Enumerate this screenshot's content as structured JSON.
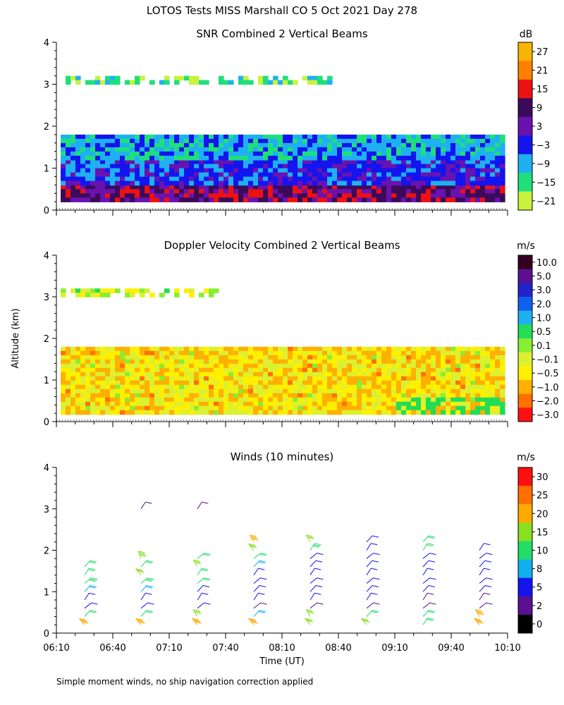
{
  "title": "LOTOS Tests MISS Marshall CO   5 Oct 2021 Day 278",
  "ylabel": "Altitude (km)",
  "xlabel": "Time (UT)",
  "footnote": "Simple moment winds, no ship navigation correction applied",
  "x_ticks": [
    "06:10",
    "06:40",
    "07:10",
    "07:40",
    "08:10",
    "08:40",
    "09:10",
    "09:40",
    "10:10"
  ],
  "y_ticks": [
    "0",
    "1",
    "2",
    "3",
    "4"
  ],
  "chart_data": [
    {
      "type": "heatmap",
      "title": "SNR Combined 2 Vertical Beams",
      "unit": "dB",
      "xlim": [
        "06:10",
        "10:10"
      ],
      "ylim": [
        0,
        4
      ],
      "colorbar": {
        "labels": [
          "27",
          "21",
          "15",
          "9",
          "3",
          "−3",
          "−9",
          "−15",
          "−21"
        ],
        "colors": [
          "#f7b500",
          "#ff7f00",
          "#ee1111",
          "#3c0a5a",
          "#6a12b0",
          "#1414ee",
          "#1fb0f2",
          "#1ee07a",
          "#c8f23c"
        ]
      },
      "layers": [
        {
          "from_km": 0.25,
          "to_km": 0.6,
          "level_dB": 9
        },
        {
          "from_km": 0.6,
          "to_km": 1.2,
          "level_dB": -3
        },
        {
          "from_km": 1.2,
          "to_km": 1.8,
          "level_dB": -9
        },
        {
          "from_km": 3.0,
          "to_km": 3.2,
          "level_dB": -15
        }
      ]
    },
    {
      "type": "heatmap",
      "title": "Doppler Velocity Combined 2 Vertical Beams",
      "unit": "m/s",
      "xlim": [
        "06:10",
        "10:10"
      ],
      "ylim": [
        0,
        4
      ],
      "colorbar": {
        "labels": [
          "10.0",
          "5.0",
          "3.0",
          "2.0",
          "1.0",
          "0.5",
          "0.1",
          "−0.1",
          "−0.5",
          "−1.0",
          "−2.0",
          "−3.0"
        ],
        "colors": [
          "#33001f",
          "#5a1090",
          "#2222cc",
          "#1060f0",
          "#20b0f0",
          "#22dd55",
          "#88ee33",
          "#ddf030",
          "#fff000",
          "#ffb000",
          "#ff7000",
          "#ff1010"
        ]
      },
      "layers": [
        {
          "from_km": 0.25,
          "to_km": 1.8,
          "level_ms": -0.5
        },
        {
          "from_km": 3.0,
          "to_km": 3.2,
          "level_ms": -0.1
        }
      ]
    },
    {
      "type": "scatter",
      "title": "Winds (10 minutes)",
      "unit": "m/s",
      "xlim": [
        "06:10",
        "10:10"
      ],
      "ylim": [
        0,
        4
      ],
      "colorbar": {
        "labels": [
          "30",
          "25",
          "20",
          "15",
          "10",
          "8",
          "5",
          "2",
          "0"
        ],
        "colors": [
          "#ff1010",
          "#ff7000",
          "#ffaa00",
          "#88e020",
          "#22dd66",
          "#10b0ee",
          "#1414ee",
          "#5a1090",
          "#000000"
        ]
      },
      "profiles": [
        {
          "time": "06:25",
          "heights_km": [
            0.2,
            0.4,
            0.6,
            0.8,
            1.0,
            1.2,
            1.4,
            1.6
          ],
          "speed_ms": [
            22,
            12,
            5,
            5,
            8,
            13,
            11,
            10
          ]
        },
        {
          "time": "06:55",
          "heights_km": [
            0.2,
            0.4,
            0.6,
            0.8,
            1.0,
            1.2,
            1.4,
            1.6,
            1.8,
            3.0
          ],
          "speed_ms": [
            22,
            10,
            5,
            5,
            8,
            13,
            16,
            12,
            18,
            3
          ]
        },
        {
          "time": "07:25",
          "heights_km": [
            0.2,
            0.4,
            0.6,
            0.8,
            1.0,
            1.2,
            1.4,
            1.6,
            1.8,
            3.0
          ],
          "speed_ms": [
            20,
            15,
            5,
            5,
            7,
            12,
            12,
            15,
            12,
            3
          ]
        },
        {
          "time": "07:55",
          "heights_km": [
            0.2,
            0.4,
            0.6,
            0.8,
            1.0,
            1.2,
            1.4,
            1.6,
            1.8,
            2.0,
            2.2
          ],
          "speed_ms": [
            22,
            8,
            3,
            5,
            6,
            6,
            6,
            8,
            10,
            17,
            22
          ]
        },
        {
          "time": "08:25",
          "heights_km": [
            0.2,
            0.4,
            0.6,
            0.8,
            1.0,
            1.2,
            1.4,
            1.6,
            1.8,
            2.0,
            2.2
          ],
          "speed_ms": [
            15,
            16,
            4,
            5,
            5,
            6,
            6,
            6,
            7,
            13,
            17
          ]
        },
        {
          "time": "08:55",
          "heights_km": [
            0.2,
            0.4,
            0.6,
            0.8,
            1.0,
            1.2,
            1.4,
            1.6,
            1.8,
            2.0,
            2.2
          ],
          "speed_ms": [
            16,
            12,
            4,
            6,
            6,
            6,
            6,
            6,
            6,
            6,
            6
          ]
        },
        {
          "time": "09:25",
          "heights_km": [
            0.2,
            0.4,
            0.6,
            0.8,
            1.0,
            1.2,
            1.4,
            1.6,
            1.8,
            2.0,
            2.2
          ],
          "speed_ms": [
            12,
            10,
            4,
            2,
            5,
            5,
            5,
            5,
            5,
            12,
            10
          ]
        },
        {
          "time": "09:55",
          "heights_km": [
            0.2,
            0.4,
            0.6,
            0.8,
            1.0,
            1.2,
            1.4,
            1.6,
            1.8,
            2.0
          ],
          "speed_ms": [
            22,
            20,
            2,
            3,
            5,
            5,
            5,
            6,
            6,
            7
          ]
        }
      ]
    }
  ]
}
